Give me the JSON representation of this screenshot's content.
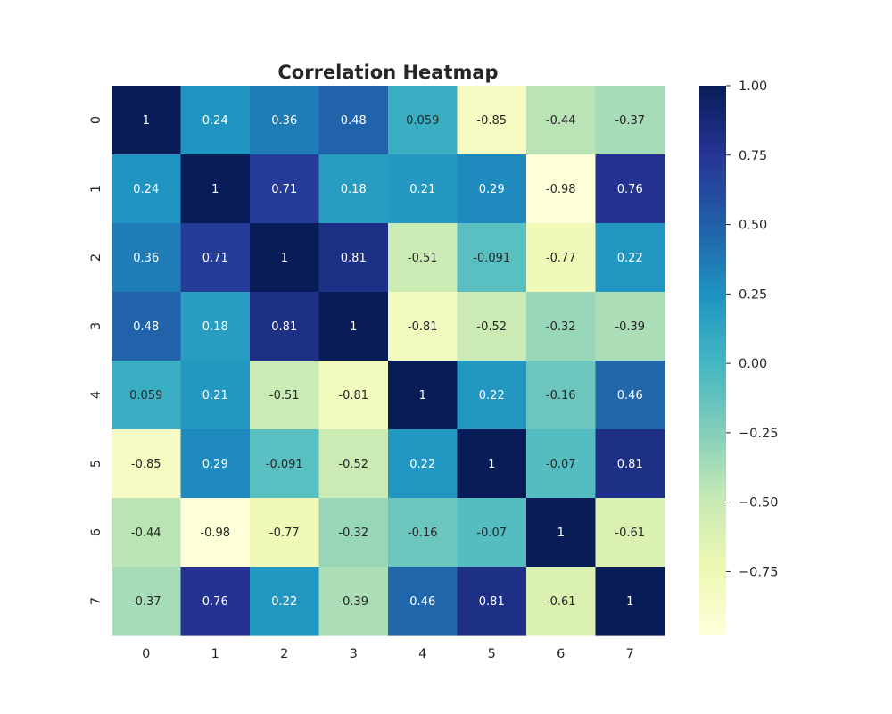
{
  "chart_data": {
    "type": "heatmap",
    "title": "Correlation Heatmap",
    "xlabel": "",
    "ylabel": "",
    "x_categories": [
      "0",
      "1",
      "2",
      "3",
      "4",
      "5",
      "6",
      "7"
    ],
    "y_categories": [
      "0",
      "1",
      "2",
      "3",
      "4",
      "5",
      "6",
      "7"
    ],
    "values": [
      [
        1,
        0.24,
        0.36,
        0.48,
        0.059,
        -0.85,
        -0.44,
        -0.37
      ],
      [
        0.24,
        1,
        0.71,
        0.18,
        0.21,
        0.29,
        -0.98,
        0.76
      ],
      [
        0.36,
        0.71,
        1,
        0.81,
        -0.51,
        -0.091,
        -0.77,
        0.22
      ],
      [
        0.48,
        0.18,
        0.81,
        1,
        -0.81,
        -0.52,
        -0.32,
        -0.39
      ],
      [
        0.059,
        0.21,
        -0.51,
        -0.81,
        1,
        0.22,
        -0.16,
        0.46
      ],
      [
        -0.85,
        0.29,
        -0.091,
        -0.52,
        0.22,
        1,
        -0.07,
        0.81
      ],
      [
        -0.44,
        -0.98,
        -0.77,
        -0.32,
        -0.16,
        -0.07,
        1,
        -0.61
      ],
      [
        -0.37,
        0.76,
        0.22,
        -0.39,
        0.46,
        0.81,
        -0.61,
        1
      ]
    ],
    "annotations": [
      [
        "1",
        "0.24",
        "0.36",
        "0.48",
        "0.059",
        "-0.85",
        "-0.44",
        "-0.37"
      ],
      [
        "0.24",
        "1",
        "0.71",
        "0.18",
        "0.21",
        "0.29",
        "-0.98",
        "0.76"
      ],
      [
        "0.36",
        "0.71",
        "1",
        "0.81",
        "-0.51",
        "-0.091",
        "-0.77",
        "0.22"
      ],
      [
        "0.48",
        "0.18",
        "0.81",
        "1",
        "-0.81",
        "-0.52",
        "-0.32",
        "-0.39"
      ],
      [
        "0.059",
        "0.21",
        "-0.51",
        "-0.81",
        "1",
        "0.22",
        "-0.16",
        "0.46"
      ],
      [
        "-0.85",
        "0.29",
        "-0.091",
        "-0.52",
        "0.22",
        "1",
        "-0.07",
        "0.81"
      ],
      [
        "-0.44",
        "-0.98",
        "-0.77",
        "-0.32",
        "-0.16",
        "-0.07",
        "1",
        "-0.61"
      ],
      [
        "-0.37",
        "0.76",
        "0.22",
        "-0.39",
        "0.46",
        "0.81",
        "-0.61",
        "1"
      ]
    ],
    "colormap": "YlGnBu",
    "colormap_stops": [
      "#ffffd9",
      "#edf8b1",
      "#c7e9b4",
      "#7fcdbb",
      "#41b6c4",
      "#1d91c0",
      "#225ea8",
      "#253494",
      "#081d58"
    ],
    "vmin": -0.98,
    "vmax": 1.0,
    "colorbar": {
      "ticks": [
        1.0,
        0.75,
        0.5,
        0.25,
        0.0,
        -0.25,
        -0.5,
        -0.75
      ],
      "tick_labels": [
        "1.00",
        "0.75",
        "0.50",
        "0.25",
        "0.00",
        "−0.25",
        "−0.50",
        "−0.75"
      ]
    },
    "annotation_colors": {
      "dark": "#262626",
      "light": "#ffffff"
    },
    "grid": false
  }
}
